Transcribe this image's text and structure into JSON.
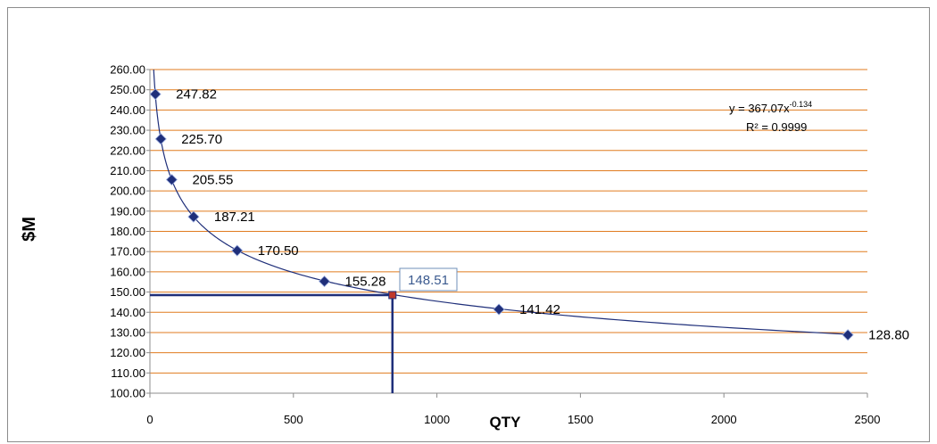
{
  "chart_data": {
    "type": "scatter",
    "title": "",
    "xlabel": "QTY",
    "ylabel": "$M",
    "xlim": [
      0,
      2500
    ],
    "ylim": [
      100,
      260
    ],
    "x_ticks": [
      0,
      500,
      1000,
      1500,
      2000,
      2500
    ],
    "y_ticks": [
      100,
      110,
      120,
      130,
      140,
      150,
      160,
      170,
      180,
      190,
      200,
      210,
      220,
      230,
      240,
      250,
      260
    ],
    "y_tick_labels": [
      "100.00",
      "110.00",
      "120.00",
      "130.00",
      "140.00",
      "150.00",
      "160.00",
      "170.00",
      "180.00",
      "190.00",
      "200.00",
      "210.00",
      "220.00",
      "230.00",
      "240.00",
      "250.00",
      "260.00"
    ],
    "grid": "horizontal",
    "series": [
      {
        "points": [
          {
            "x": 19,
            "y": 247.82,
            "label": "247.82"
          },
          {
            "x": 38,
            "y": 225.7,
            "label": "225.70"
          },
          {
            "x": 76,
            "y": 205.55,
            "label": "205.55"
          },
          {
            "x": 152,
            "y": 187.21,
            "label": "187.21"
          },
          {
            "x": 304,
            "y": 170.5,
            "label": "170.50"
          },
          {
            "x": 608,
            "y": 155.28,
            "label": "155.28"
          },
          {
            "x": 1216,
            "y": 141.42,
            "label": "141.42"
          },
          {
            "x": 2432,
            "y": 128.8,
            "label": "128.80"
          }
        ],
        "marker_color": "#1f2f7a"
      }
    ],
    "trendline": {
      "type": "power",
      "a": 367.07,
      "b": -0.134,
      "equation_prefix": "y = 367.07x",
      "equation_exponent": "-0.134",
      "r_squared": "R² = 0.9999",
      "color": "#1f2f7a"
    },
    "highlight": {
      "x": 845,
      "y": 148.51,
      "label": "148.51",
      "color": "#1f2f7a",
      "marker_color": "#c0392b"
    },
    "colors": {
      "grid": "#e07b1f",
      "axis": "#8c8c8c"
    }
  }
}
